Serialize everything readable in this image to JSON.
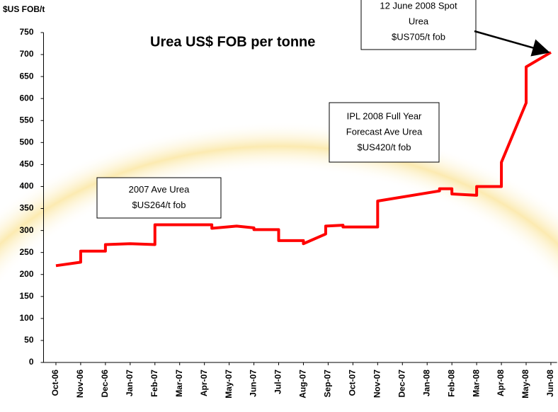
{
  "chart_data": {
    "type": "line",
    "title": "Urea US$ FOB per tonne",
    "y_label": "$US FOB/t",
    "xlim": [
      -0.5,
      20.25
    ],
    "xticks": [
      {
        "value": 0,
        "label": "Oct-06"
      },
      {
        "value": 1,
        "label": "Nov-06"
      },
      {
        "value": 2,
        "label": "Dec-06"
      },
      {
        "value": 3,
        "label": "Jan-07"
      },
      {
        "value": 4,
        "label": "Feb-07"
      },
      {
        "value": 5,
        "label": "Mar-07"
      },
      {
        "value": 6,
        "label": "Apr-07"
      },
      {
        "value": 7,
        "label": "May-07"
      },
      {
        "value": 8,
        "label": "Jun-07"
      },
      {
        "value": 9,
        "label": "Jul-07"
      },
      {
        "value": 10,
        "label": "Aug-07"
      },
      {
        "value": 11,
        "label": "Sep-07"
      },
      {
        "value": 12,
        "label": "Oct-07"
      },
      {
        "value": 13,
        "label": "Nov-07"
      },
      {
        "value": 14,
        "label": "Dec-07"
      },
      {
        "value": 15,
        "label": "Jan-08"
      },
      {
        "value": 16,
        "label": "Feb-08"
      },
      {
        "value": 17,
        "label": "Mar-08"
      },
      {
        "value": 18,
        "label": "Apr-08"
      },
      {
        "value": 19,
        "label": "May-08"
      },
      {
        "value": 20,
        "label": "Jun-08"
      }
    ],
    "ylim": [
      0,
      750
    ],
    "yticks": [
      0,
      50,
      100,
      150,
      200,
      250,
      300,
      350,
      400,
      450,
      500,
      550,
      600,
      650,
      700,
      750
    ],
    "series": [
      {
        "color": "#ff0000",
        "x": [
          0,
          1,
          1,
          2,
          2,
          3,
          4,
          4,
          6.3,
          6.3,
          7.3,
          8,
          8,
          9,
          9,
          10,
          10,
          10.9,
          10.9,
          11.6,
          11.6,
          13,
          13,
          15.5,
          15.5,
          16,
          16,
          17,
          17,
          18,
          18,
          19,
          19,
          20
        ],
        "values": [
          220,
          228,
          253,
          253,
          268,
          270,
          268,
          313,
          313,
          305,
          310,
          306,
          302,
          302,
          277,
          277,
          270,
          292,
          310,
          312,
          308,
          308,
          367,
          390,
          395,
          395,
          383,
          380,
          400,
          400,
          455,
          590,
          672,
          705
        ]
      }
    ],
    "annotations": [
      {
        "lines": [
          "12 June 2008 Spot",
          "Urea",
          "$US705/t fob"
        ]
      },
      {
        "lines": [
          "IPL 2008 Full Year",
          "Forecast Ave Urea",
          "$US420/t fob"
        ]
      },
      {
        "lines": [
          "2007 Ave Urea",
          "$US264/t fob"
        ]
      }
    ]
  }
}
